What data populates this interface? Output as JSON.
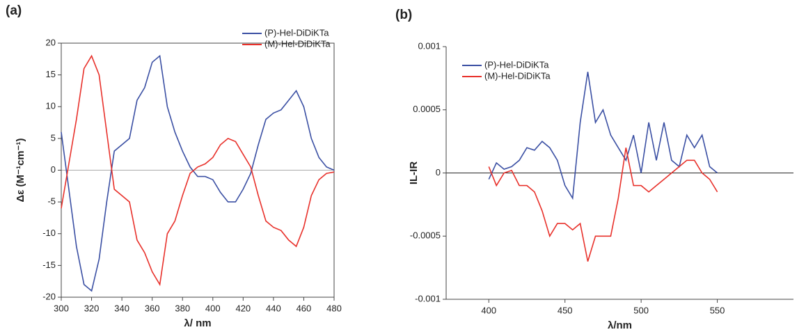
{
  "chart_data": [
    {
      "type": "line",
      "label": "(a)",
      "x_label": "λ/ nm",
      "y_label": "Δε (M⁻¹cm⁻¹)",
      "xlim": [
        300,
        480
      ],
      "xticks": [
        300,
        320,
        340,
        360,
        380,
        400,
        420,
        440,
        460,
        480
      ],
      "ylim": [
        -20,
        20
      ],
      "yticks": [
        -20,
        -15,
        -10,
        -5,
        0,
        5,
        10,
        15,
        20
      ],
      "zero_line": true,
      "frame": true,
      "legend": "upper right",
      "x": [
        300,
        305,
        310,
        315,
        320,
        325,
        330,
        335,
        340,
        345,
        350,
        355,
        360,
        365,
        370,
        375,
        380,
        385,
        390,
        395,
        400,
        405,
        410,
        415,
        420,
        425,
        430,
        435,
        440,
        445,
        450,
        455,
        460,
        465,
        470,
        475,
        480
      ],
      "series": [
        {
          "name": "(P)-Hel-DiDiKTa",
          "color": "#3a4fa3",
          "values": [
            6,
            -3,
            -12,
            -18,
            -19,
            -14,
            -5,
            3,
            4,
            5,
            11,
            13,
            17,
            18,
            10,
            6,
            3,
            0.5,
            -1,
            -1,
            -1.5,
            -3.5,
            -5,
            -5,
            -3,
            -0.5,
            4,
            8,
            9,
            9.5,
            11,
            12.5,
            10,
            5,
            2,
            0.5,
            0
          ]
        },
        {
          "name": "(M)-Hel-DiDiKTa",
          "color": "#e8302a",
          "values": [
            -6,
            1,
            8,
            16,
            18,
            15,
            6,
            -3,
            -4,
            -5,
            -11,
            -13,
            -16,
            -18,
            -10,
            -8,
            -4,
            -0.5,
            0.5,
            1,
            2,
            4,
            5,
            4.5,
            2.5,
            0.5,
            -4,
            -8,
            -9,
            -9.5,
            -11,
            -12,
            -9,
            -4,
            -1.5,
            -0.5,
            -0.3
          ]
        }
      ]
    },
    {
      "type": "line",
      "label": "(b)",
      "x_label": "λ/nm",
      "y_label": "IL-IR",
      "xlim": [
        372,
        600
      ],
      "xticks": [
        400,
        450,
        500,
        550
      ],
      "ylim": [
        -0.001,
        0.001
      ],
      "yticks": [
        -0.001,
        -0.0005,
        0,
        0.0005,
        0.001
      ],
      "zero_line": true,
      "frame": false,
      "legend": "upper left",
      "x": [
        400,
        405,
        410,
        415,
        420,
        425,
        430,
        435,
        440,
        445,
        450,
        455,
        460,
        465,
        470,
        475,
        480,
        485,
        490,
        495,
        500,
        505,
        510,
        515,
        520,
        525,
        530,
        535,
        540,
        545,
        550
      ],
      "series": [
        {
          "name": "(P)-Hel-DiDiKTa",
          "color": "#3a4fa3",
          "values": [
            -5e-05,
            8e-05,
            3e-05,
            5e-05,
            0.0001,
            0.0002,
            0.00018,
            0.00025,
            0.0002,
            0.0001,
            -0.0001,
            -0.0002,
            0.0004,
            0.0008,
            0.0004,
            0.0005,
            0.0003,
            0.0002,
            0.0001,
            0.0003,
            0,
            0.0004,
            0.0001,
            0.0004,
            0.0001,
            5e-05,
            0.0003,
            0.0002,
            0.0003,
            5e-05,
            0
          ]
        },
        {
          "name": "(M)-Hel-DiDiKTa",
          "color": "#e8302a",
          "values": [
            5e-05,
            -0.0001,
            0,
            2e-05,
            -0.0001,
            -0.0001,
            -0.00015,
            -0.0003,
            -0.0005,
            -0.0004,
            -0.0004,
            -0.00045,
            -0.0004,
            -0.0007,
            -0.0005,
            -0.0005,
            -0.0005,
            -0.0002,
            0.0002,
            -0.0001,
            -0.0001,
            -0.00015,
            -0.0001,
            -5e-05,
            0,
            5e-05,
            0.0001,
            0.0001,
            0,
            -5e-05,
            -0.00015
          ]
        }
      ]
    }
  ]
}
